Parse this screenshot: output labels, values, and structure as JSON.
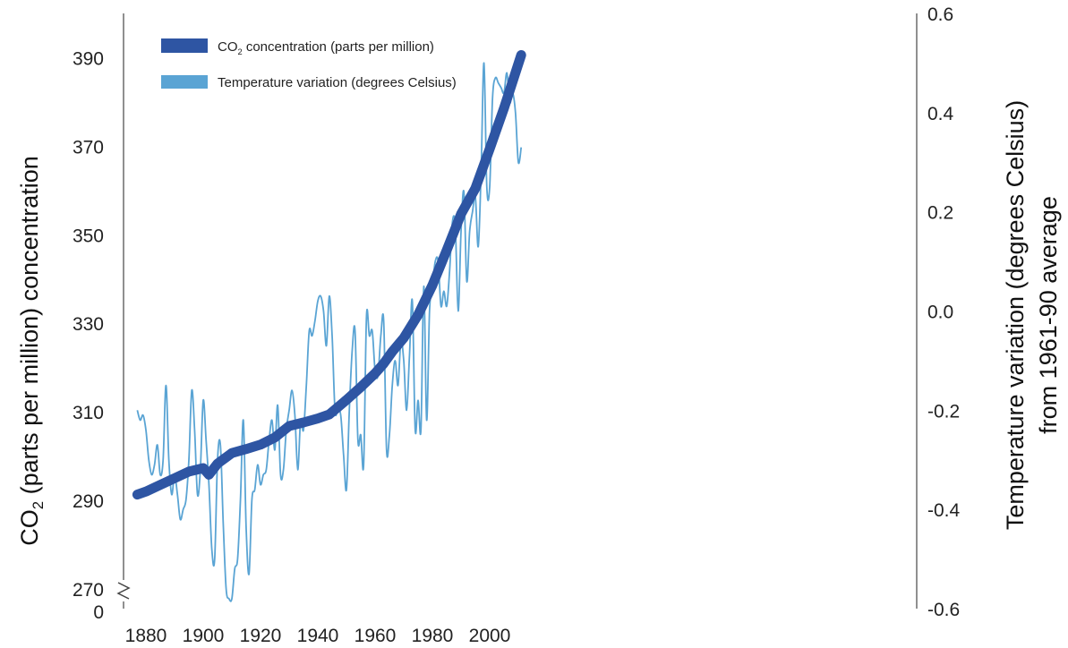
{
  "chart_data": {
    "type": "line",
    "x_ticks": [
      "1880",
      "1900",
      "1920",
      "1940",
      "1960",
      "1980",
      "2000"
    ],
    "left_axis": {
      "label_parts": [
        "CO",
        "2",
        " (parts per million) concentration"
      ],
      "ticks": [
        "0",
        "270",
        "290",
        "310",
        "330",
        "350",
        "370",
        "390"
      ],
      "ylim": [
        270,
        400
      ],
      "axis_break": true
    },
    "right_axis": {
      "label_line1": "Temperature variation (degrees  Celsius)",
      "label_line2": "from 1961-90 average",
      "ticks": [
        "0.6",
        "0.4",
        "0.2",
        "0.0",
        "-0.2",
        "-0.4",
        "-0.6"
      ],
      "ylim": [
        -0.6,
        0.6
      ]
    },
    "xlim": [
      1877,
      2012
    ],
    "legend": {
      "placement": "top-left",
      "items": [
        {
          "parts": [
            "CO",
            "2",
            " concentration (parts per million)"
          ],
          "color": "#2e55a3"
        },
        {
          "parts": [
            "Temperature variation (degrees Celsius)"
          ],
          "color": "#5aa4d4"
        }
      ]
    },
    "series": [
      {
        "name": "CO2 concentration (parts per million)",
        "axis": "left",
        "color": "#2e55a3",
        "x": [
          1877,
          1880,
          1885,
          1890,
          1895,
          1900,
          1902,
          1905,
          1910,
          1915,
          1920,
          1925,
          1930,
          1935,
          1940,
          1944,
          1950,
          1955,
          1960,
          1963,
          1966,
          1970,
          1975,
          1980,
          1985,
          1990,
          1995,
          2000,
          2005,
          2011
        ],
        "y": [
          291.3,
          292,
          293.5,
          295,
          296.5,
          297.3,
          295.8,
          298.3,
          300.7,
          301.6,
          302.6,
          304.2,
          306.8,
          307.6,
          308.5,
          309.4,
          312.7,
          315.6,
          318.7,
          320.9,
          323.6,
          326.7,
          331.9,
          338.6,
          346.5,
          354.7,
          360.5,
          369.4,
          378.6,
          390.6
        ]
      },
      {
        "name": "Temperature variation (degrees Celsius)",
        "axis": "right",
        "color": "#5aa4d4",
        "x": [
          1877,
          1878,
          1879,
          1880,
          1881,
          1882,
          1883,
          1884,
          1885,
          1886,
          1887,
          1888,
          1889,
          1890,
          1891,
          1892,
          1893,
          1894,
          1895,
          1896,
          1897,
          1898,
          1899,
          1900,
          1901,
          1902,
          1903,
          1904,
          1905,
          1906,
          1907,
          1908,
          1909,
          1910,
          1911,
          1912,
          1913,
          1914,
          1915,
          1916,
          1917,
          1918,
          1919,
          1920,
          1921,
          1922,
          1923,
          1924,
          1925,
          1926,
          1927,
          1928,
          1929,
          1930,
          1931,
          1932,
          1933,
          1934,
          1935,
          1936,
          1937,
          1938,
          1939,
          1940,
          1941,
          1942,
          1943,
          1944,
          1945,
          1946,
          1947,
          1948,
          1949,
          1950,
          1951,
          1952,
          1953,
          1954,
          1955,
          1956,
          1957,
          1958,
          1959,
          1960,
          1961,
          1962,
          1963,
          1964,
          1965,
          1966,
          1967,
          1968,
          1969,
          1970,
          1971,
          1972,
          1973,
          1974,
          1975,
          1976,
          1977,
          1978,
          1979,
          1980,
          1981,
          1982,
          1983,
          1984,
          1985,
          1986,
          1987,
          1988,
          1989,
          1990,
          1991,
          1992,
          1993,
          1994,
          1995,
          1996,
          1997,
          1998,
          1999,
          2000,
          2001,
          2002,
          2003,
          2004,
          2005,
          2006,
          2007,
          2008,
          2009,
          2010,
          2011
        ],
        "y": [
          -0.2,
          -0.22,
          -0.21,
          -0.24,
          -0.3,
          -0.33,
          -0.31,
          -0.27,
          -0.33,
          -0.3,
          -0.15,
          -0.3,
          -0.37,
          -0.33,
          -0.37,
          -0.42,
          -0.4,
          -0.38,
          -0.3,
          -0.16,
          -0.24,
          -0.37,
          -0.32,
          -0.18,
          -0.26,
          -0.35,
          -0.48,
          -0.5,
          -0.3,
          -0.27,
          -0.43,
          -0.56,
          -0.58,
          -0.58,
          -0.52,
          -0.5,
          -0.38,
          -0.22,
          -0.44,
          -0.53,
          -0.38,
          -0.36,
          -0.31,
          -0.35,
          -0.33,
          -0.32,
          -0.26,
          -0.22,
          -0.28,
          -0.19,
          -0.33,
          -0.32,
          -0.24,
          -0.2,
          -0.16,
          -0.21,
          -0.32,
          -0.22,
          -0.24,
          -0.15,
          -0.04,
          -0.05,
          -0.02,
          0.02,
          0.03,
          0.0,
          -0.07,
          0.03,
          -0.05,
          -0.2,
          -0.2,
          -0.21,
          -0.29,
          -0.36,
          -0.2,
          -0.08,
          -0.04,
          -0.26,
          -0.25,
          -0.31,
          -0.01,
          -0.05,
          -0.04,
          -0.12,
          -0.13,
          -0.05,
          -0.02,
          -0.28,
          -0.25,
          -0.15,
          -0.1,
          -0.15,
          -0.06,
          -0.1,
          -0.2,
          -0.09,
          0.02,
          -0.24,
          -0.18,
          -0.24,
          0.05,
          -0.22,
          0.0,
          0.05,
          0.1,
          0.1,
          0.01,
          0.04,
          0.01,
          0.08,
          0.18,
          0.17,
          0.0,
          0.16,
          0.24,
          0.06,
          0.16,
          0.2,
          0.23,
          0.13,
          0.28,
          0.5,
          0.25,
          0.25,
          0.43,
          0.47,
          0.46,
          0.45,
          0.44,
          0.48,
          0.42,
          0.44,
          0.4,
          0.3,
          0.33
        ]
      }
    ]
  }
}
